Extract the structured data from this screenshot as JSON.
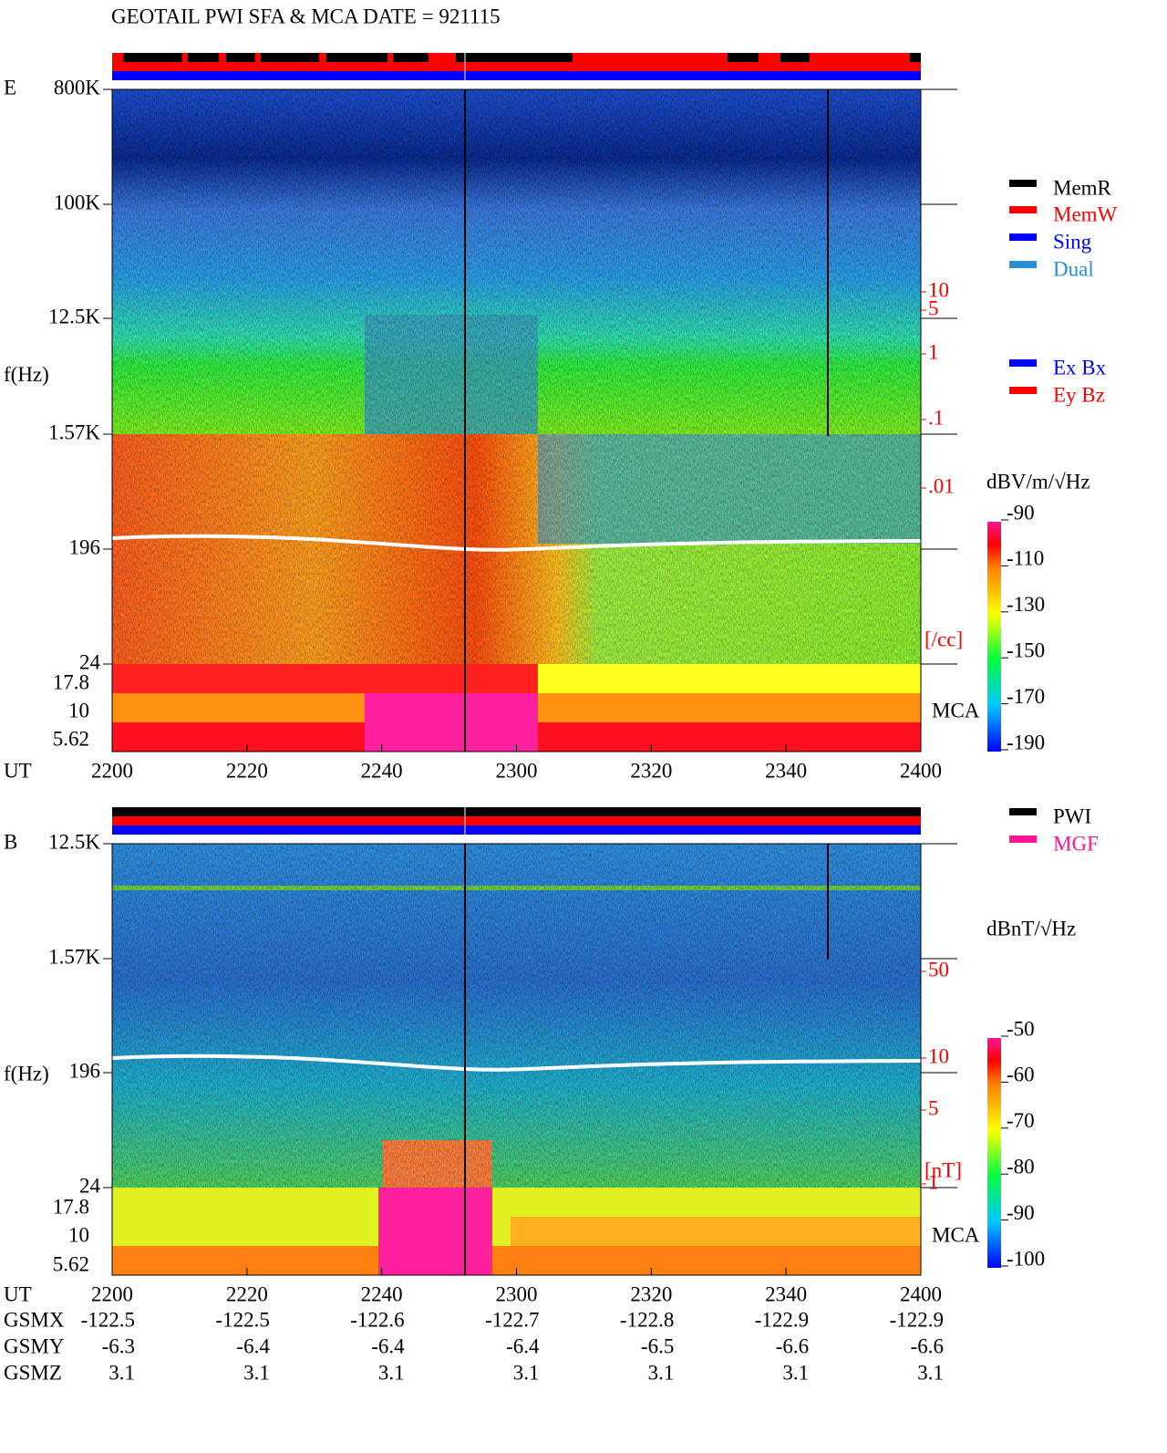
{
  "title": "GEOTAIL  PWI SFA & MCA   DATE = 921115",
  "panels": [
    {
      "label": "E",
      "yticks": [
        "800K",
        "100K",
        "12.5K",
        "1.57K",
        "196",
        "24"
      ],
      "mca_ticks": [
        "17.8",
        "10",
        "5.62"
      ],
      "ylabel": "f(Hz)",
      "xlabel": "UT",
      "xticks": [
        "2200",
        "2220",
        "2240",
        "2300",
        "2320",
        "2340",
        "2400"
      ],
      "right_ticks": [
        "10",
        "5",
        "1",
        ".1",
        ".01"
      ],
      "right_unit": "[/cc]",
      "mca_label": "MCA",
      "colorbar_unit": "dBV/m/√Hz",
      "colorbar_ticks": [
        "-90",
        "-110",
        "-130",
        "-150",
        "-170",
        "-190"
      ],
      "legend": [
        {
          "name": "MemR",
          "color": "#000000"
        },
        {
          "name": "MemW",
          "color": "#ff0000"
        },
        {
          "name": "Sing",
          "color": "#0000ff"
        },
        {
          "name": "Dual",
          "color": "#2a8fd0"
        }
      ],
      "legend2": [
        {
          "name": "Ex Bx",
          "color": "#0000ff"
        },
        {
          "name": "Ey Bz",
          "color": "#ff0000"
        }
      ]
    },
    {
      "label": "B",
      "yticks": [
        "12.5K",
        "1.57K",
        "196",
        "24"
      ],
      "mca_ticks": [
        "17.8",
        "10",
        "5.62"
      ],
      "ylabel": "f(Hz)",
      "xlabel": "UT",
      "xticks": [
        "2200",
        "2220",
        "2240",
        "2300",
        "2320",
        "2340",
        "2400"
      ],
      "right_ticks": [
        "50",
        "10",
        "5",
        "1"
      ],
      "right_unit": "[nT]",
      "mca_label": "MCA",
      "colorbar_unit": "dBnT/√Hz",
      "colorbar_ticks": [
        "-50",
        "-60",
        "-70",
        "-80",
        "-90",
        "-100"
      ],
      "legend": [
        {
          "name": "PWI",
          "color": "#000000"
        },
        {
          "name": "MGF",
          "color": "#ff1493"
        }
      ]
    }
  ],
  "orbit": [
    {
      "name": "GSMX",
      "values": [
        "-122.5",
        "-122.5",
        "-122.6",
        "-122.7",
        "-122.8",
        "-122.9",
        "-122.9"
      ]
    },
    {
      "name": "GSMY",
      "values": [
        "-6.3",
        "-6.4",
        "-6.4",
        "-6.4",
        "-6.5",
        "-6.6",
        "-6.6"
      ]
    },
    {
      "name": "GSMZ",
      "values": [
        "3.1",
        "3.1",
        "3.1",
        "3.1",
        "3.1",
        "3.1",
        "3.1"
      ]
    }
  ]
}
